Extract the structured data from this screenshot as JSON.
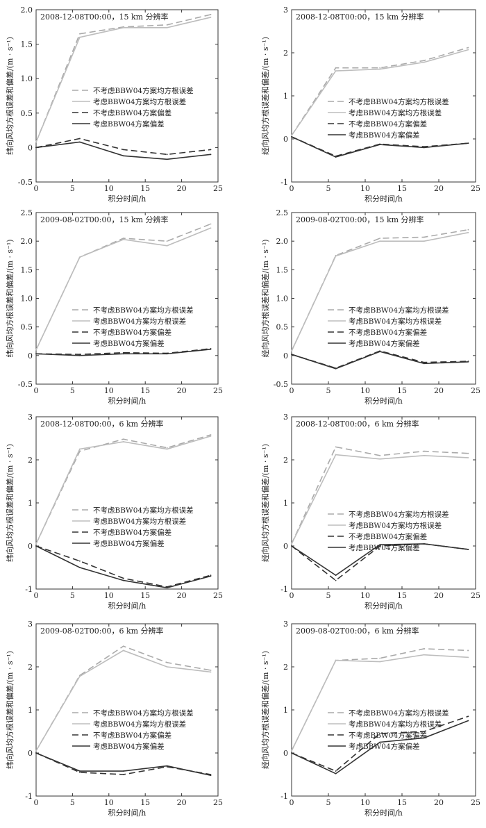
{
  "figure": {
    "xlabel": "积分时间/h",
    "ylabel_u": "纬向风均方根误差和偏差/(m · s⁻¹)",
    "ylabel_v": "经向风均方根误差和偏差/(m · s⁻¹)",
    "legend": [
      "不考虑BBW04方案均方根误差",
      "考虑BBW04方案均方根误差",
      "不考虑BBW04方案偏差",
      "考虑BBW04方案偏差"
    ]
  },
  "colors": {
    "rmse_no": "#aaaaaa",
    "rmse_yes": "#bdbdbd",
    "bias_no": "#333333",
    "bias_yes": "#333333",
    "axis": "#333333"
  },
  "chart_data": [
    {
      "type": "line",
      "title": "2008-12-08T00:00，15 km 分辨率",
      "ylabel": "纬向风均方根误差和偏差/(m · s⁻¹)",
      "xlabel": "积分时间/h",
      "x": [
        0,
        6,
        12,
        18,
        24
      ],
      "xlim": [
        0,
        25
      ],
      "ylim": [
        -0.5,
        2.0
      ],
      "xticks": [
        "0",
        "5",
        "10",
        "15",
        "20",
        "25"
      ],
      "yticks": [
        "-0.5",
        "0",
        "0.5",
        "1.0",
        "1.5",
        "2.0"
      ],
      "legend_position": "middle",
      "series": [
        {
          "name": "不考虑BBW04方案均方根误差",
          "values": [
            0.08,
            1.65,
            1.75,
            1.78,
            1.93
          ]
        },
        {
          "name": "考虑BBW04方案均方根误差",
          "values": [
            0.08,
            1.6,
            1.74,
            1.74,
            1.89
          ]
        },
        {
          "name": "不考虑BBW04方案偏差",
          "values": [
            0.0,
            0.13,
            -0.03,
            -0.1,
            -0.03
          ]
        },
        {
          "name": "考虑BBW04方案偏差",
          "values": [
            0.0,
            0.08,
            -0.12,
            -0.17,
            -0.1
          ]
        }
      ]
    },
    {
      "type": "line",
      "title": "2008-12-08T00:00，15 km 分辨率",
      "ylabel": "经向风均方根误差和偏差/(m · s⁻¹)",
      "xlabel": "积分时间/h",
      "x": [
        0,
        6,
        12,
        18,
        24
      ],
      "xlim": [
        0,
        25
      ],
      "ylim": [
        -1,
        3
      ],
      "xticks": [
        "0",
        "5",
        "10",
        "15",
        "20",
        "25"
      ],
      "yticks": [
        "-1",
        "0",
        "1",
        "2",
        "3"
      ],
      "legend_position": "middle",
      "series": [
        {
          "name": "不考虑BBW04方案均方根误差",
          "values": [
            0.08,
            1.65,
            1.65,
            1.82,
            2.12
          ]
        },
        {
          "name": "考虑BBW04方案均方根误差",
          "values": [
            0.08,
            1.58,
            1.62,
            1.78,
            2.07
          ]
        },
        {
          "name": "不考虑BBW04方案偏差",
          "values": [
            0.05,
            -0.4,
            -0.12,
            -0.18,
            -0.1
          ]
        },
        {
          "name": "考虑BBW04方案偏差",
          "values": [
            0.05,
            -0.42,
            -0.13,
            -0.2,
            -0.1
          ]
        }
      ]
    },
    {
      "type": "line",
      "title": "2009-08-02T00:00，15 km 分辨率",
      "ylabel": "纬向风均方根误差和偏差/(m · s⁻¹)",
      "xlabel": "积分时间/h",
      "x": [
        0,
        6,
        12,
        18,
        24
      ],
      "xlim": [
        0,
        25
      ],
      "ylim": [
        -0.5,
        2.5
      ],
      "xticks": [
        "0",
        "5",
        "10",
        "15",
        "20",
        "25"
      ],
      "yticks": [
        "-0.5",
        "0",
        "0.5",
        "1.0",
        "1.5",
        "2.0",
        "2.5"
      ],
      "legend_position": "middle",
      "series": [
        {
          "name": "不考虑BBW04方案均方根误差",
          "values": [
            0.1,
            1.72,
            2.05,
            2.0,
            2.3
          ]
        },
        {
          "name": "考虑BBW04方案均方根误差",
          "values": [
            0.1,
            1.72,
            2.03,
            1.92,
            2.23
          ]
        },
        {
          "name": "不考虑BBW04方案偏差",
          "values": [
            0.03,
            0.02,
            0.05,
            0.04,
            0.12
          ]
        },
        {
          "name": "考虑BBW04方案偏差",
          "values": [
            0.03,
            0.0,
            0.03,
            0.03,
            0.11
          ]
        }
      ]
    },
    {
      "type": "line",
      "title": "2009-08-02T00:00，15 km 分辨率",
      "ylabel": "经向风均方根误差和偏差/(m · s⁻¹)",
      "xlabel": "积分时间/h",
      "x": [
        0,
        6,
        12,
        18,
        24
      ],
      "xlim": [
        0,
        25
      ],
      "ylim": [
        -0.5,
        2.5
      ],
      "xticks": [
        "0",
        "5",
        "10",
        "15",
        "20",
        "25"
      ],
      "yticks": [
        "-0.5",
        "0",
        "0.5",
        "1.0",
        "1.5",
        "2.0",
        "2.5"
      ],
      "legend_position": "middle",
      "series": [
        {
          "name": "不考虑BBW04方案均方根误差",
          "values": [
            0.08,
            1.75,
            2.05,
            2.07,
            2.2
          ]
        },
        {
          "name": "考虑BBW04方案均方根误差",
          "values": [
            0.08,
            1.74,
            2.0,
            2.0,
            2.15
          ]
        },
        {
          "name": "不考虑BBW04方案偏差",
          "values": [
            0.02,
            -0.22,
            0.08,
            -0.12,
            -0.1
          ]
        },
        {
          "name": "考虑BBW04方案偏差",
          "values": [
            0.02,
            -0.23,
            0.07,
            -0.14,
            -0.11
          ]
        }
      ]
    },
    {
      "type": "line",
      "title": "2008-12-08T00:00，6 km 分辨率",
      "ylabel": "纬向风均方根误差和偏差/(m · s⁻¹)",
      "xlabel": "积分时间/h",
      "x": [
        0,
        6,
        12,
        18,
        24
      ],
      "xlim": [
        0,
        25
      ],
      "ylim": [
        -1,
        3
      ],
      "xticks": [
        "0",
        "5",
        "10",
        "15",
        "20",
        "25"
      ],
      "yticks": [
        "-1",
        "0",
        "1",
        "2",
        "3"
      ],
      "legend_position": "middle",
      "series": [
        {
          "name": "不考虑BBW04方案均方根误差",
          "values": [
            0.05,
            2.2,
            2.48,
            2.28,
            2.58
          ]
        },
        {
          "name": "考虑BBW04方案均方根误差",
          "values": [
            0.05,
            2.25,
            2.42,
            2.25,
            2.55
          ]
        },
        {
          "name": "不考虑BBW04方案偏差",
          "values": [
            0.0,
            -0.35,
            -0.75,
            -0.95,
            -0.68
          ]
        },
        {
          "name": "考虑BBW04方案偏差",
          "values": [
            0.0,
            -0.5,
            -0.8,
            -0.97,
            -0.7
          ]
        }
      ]
    },
    {
      "type": "line",
      "title": "2008-12-08T00:00，6 km 分辨率",
      "ylabel": "经向风均方根误差和偏差/(m · s⁻¹)",
      "xlabel": "积分时间/h",
      "x": [
        0,
        6,
        12,
        18,
        24
      ],
      "xlim": [
        0,
        25
      ],
      "ylim": [
        -1,
        3
      ],
      "xticks": [
        "0",
        "5",
        "10",
        "15",
        "20",
        "25"
      ],
      "yticks": [
        "-1",
        "0",
        "1",
        "2",
        "3"
      ],
      "legend_position": "middle",
      "series": [
        {
          "name": "不考虑BBW04方案均方根误差",
          "values": [
            0.05,
            2.3,
            2.1,
            2.2,
            2.15
          ]
        },
        {
          "name": "考虑BBW04方案均方根误差",
          "values": [
            0.05,
            2.12,
            2.02,
            2.1,
            2.05
          ]
        },
        {
          "name": "不考虑BBW04方案偏差",
          "values": [
            0.0,
            -0.8,
            0.0,
            0.05,
            -0.08
          ]
        },
        {
          "name": "考虑BBW04方案偏差",
          "values": [
            0.0,
            -0.68,
            0.03,
            0.05,
            -0.08
          ]
        }
      ]
    },
    {
      "type": "line",
      "title": "2009-08-02T00:00，6 km 分辨率",
      "ylabel": "纬向风均方根误差和偏差/(m · s⁻¹)",
      "xlabel": "积分时间/h",
      "x": [
        0,
        6,
        12,
        18,
        24
      ],
      "xlim": [
        0,
        25
      ],
      "ylim": [
        -1,
        3
      ],
      "xticks": [
        "0",
        "5",
        "10",
        "15",
        "20",
        "25"
      ],
      "yticks": [
        "-1",
        "0",
        "1",
        "2",
        "3"
      ],
      "legend_position": "middle",
      "series": [
        {
          "name": "不考虑BBW04方案均方根误差",
          "values": [
            0.05,
            1.8,
            2.48,
            2.1,
            1.92
          ]
        },
        {
          "name": "考虑BBW04方案均方根误差",
          "values": [
            0.05,
            1.78,
            2.38,
            2.0,
            1.88
          ]
        },
        {
          "name": "不考虑BBW04方案偏差",
          "values": [
            0.0,
            -0.45,
            -0.5,
            -0.32,
            -0.5
          ]
        },
        {
          "name": "考虑BBW04方案偏差",
          "values": [
            0.0,
            -0.42,
            -0.42,
            -0.3,
            -0.52
          ]
        }
      ]
    },
    {
      "type": "line",
      "title": "2009-08-02T00:00，6 km 分辨率",
      "ylabel": "经向风均方根误差和偏差/(m · s⁻¹)",
      "xlabel": "积分时间/h",
      "x": [
        0,
        6,
        12,
        18,
        24
      ],
      "xlim": [
        0,
        25
      ],
      "ylim": [
        -1,
        3
      ],
      "xticks": [
        "0",
        "5",
        "10",
        "15",
        "20",
        "25"
      ],
      "yticks": [
        "-1",
        "0",
        "1",
        "2",
        "3"
      ],
      "legend_position": "middle",
      "series": [
        {
          "name": "不考虑BBW04方案均方根误差",
          "values": [
            0.05,
            2.15,
            2.2,
            2.42,
            2.38
          ]
        },
        {
          "name": "考虑BBW04方案均方根误差",
          "values": [
            0.05,
            2.15,
            2.12,
            2.28,
            2.22
          ]
        },
        {
          "name": "不考虑BBW04方案偏差",
          "values": [
            0.0,
            -0.42,
            0.45,
            0.5,
            0.85
          ]
        },
        {
          "name": "考虑BBW04方案偏差",
          "values": [
            0.0,
            -0.48,
            0.25,
            0.35,
            0.75
          ]
        }
      ]
    }
  ]
}
